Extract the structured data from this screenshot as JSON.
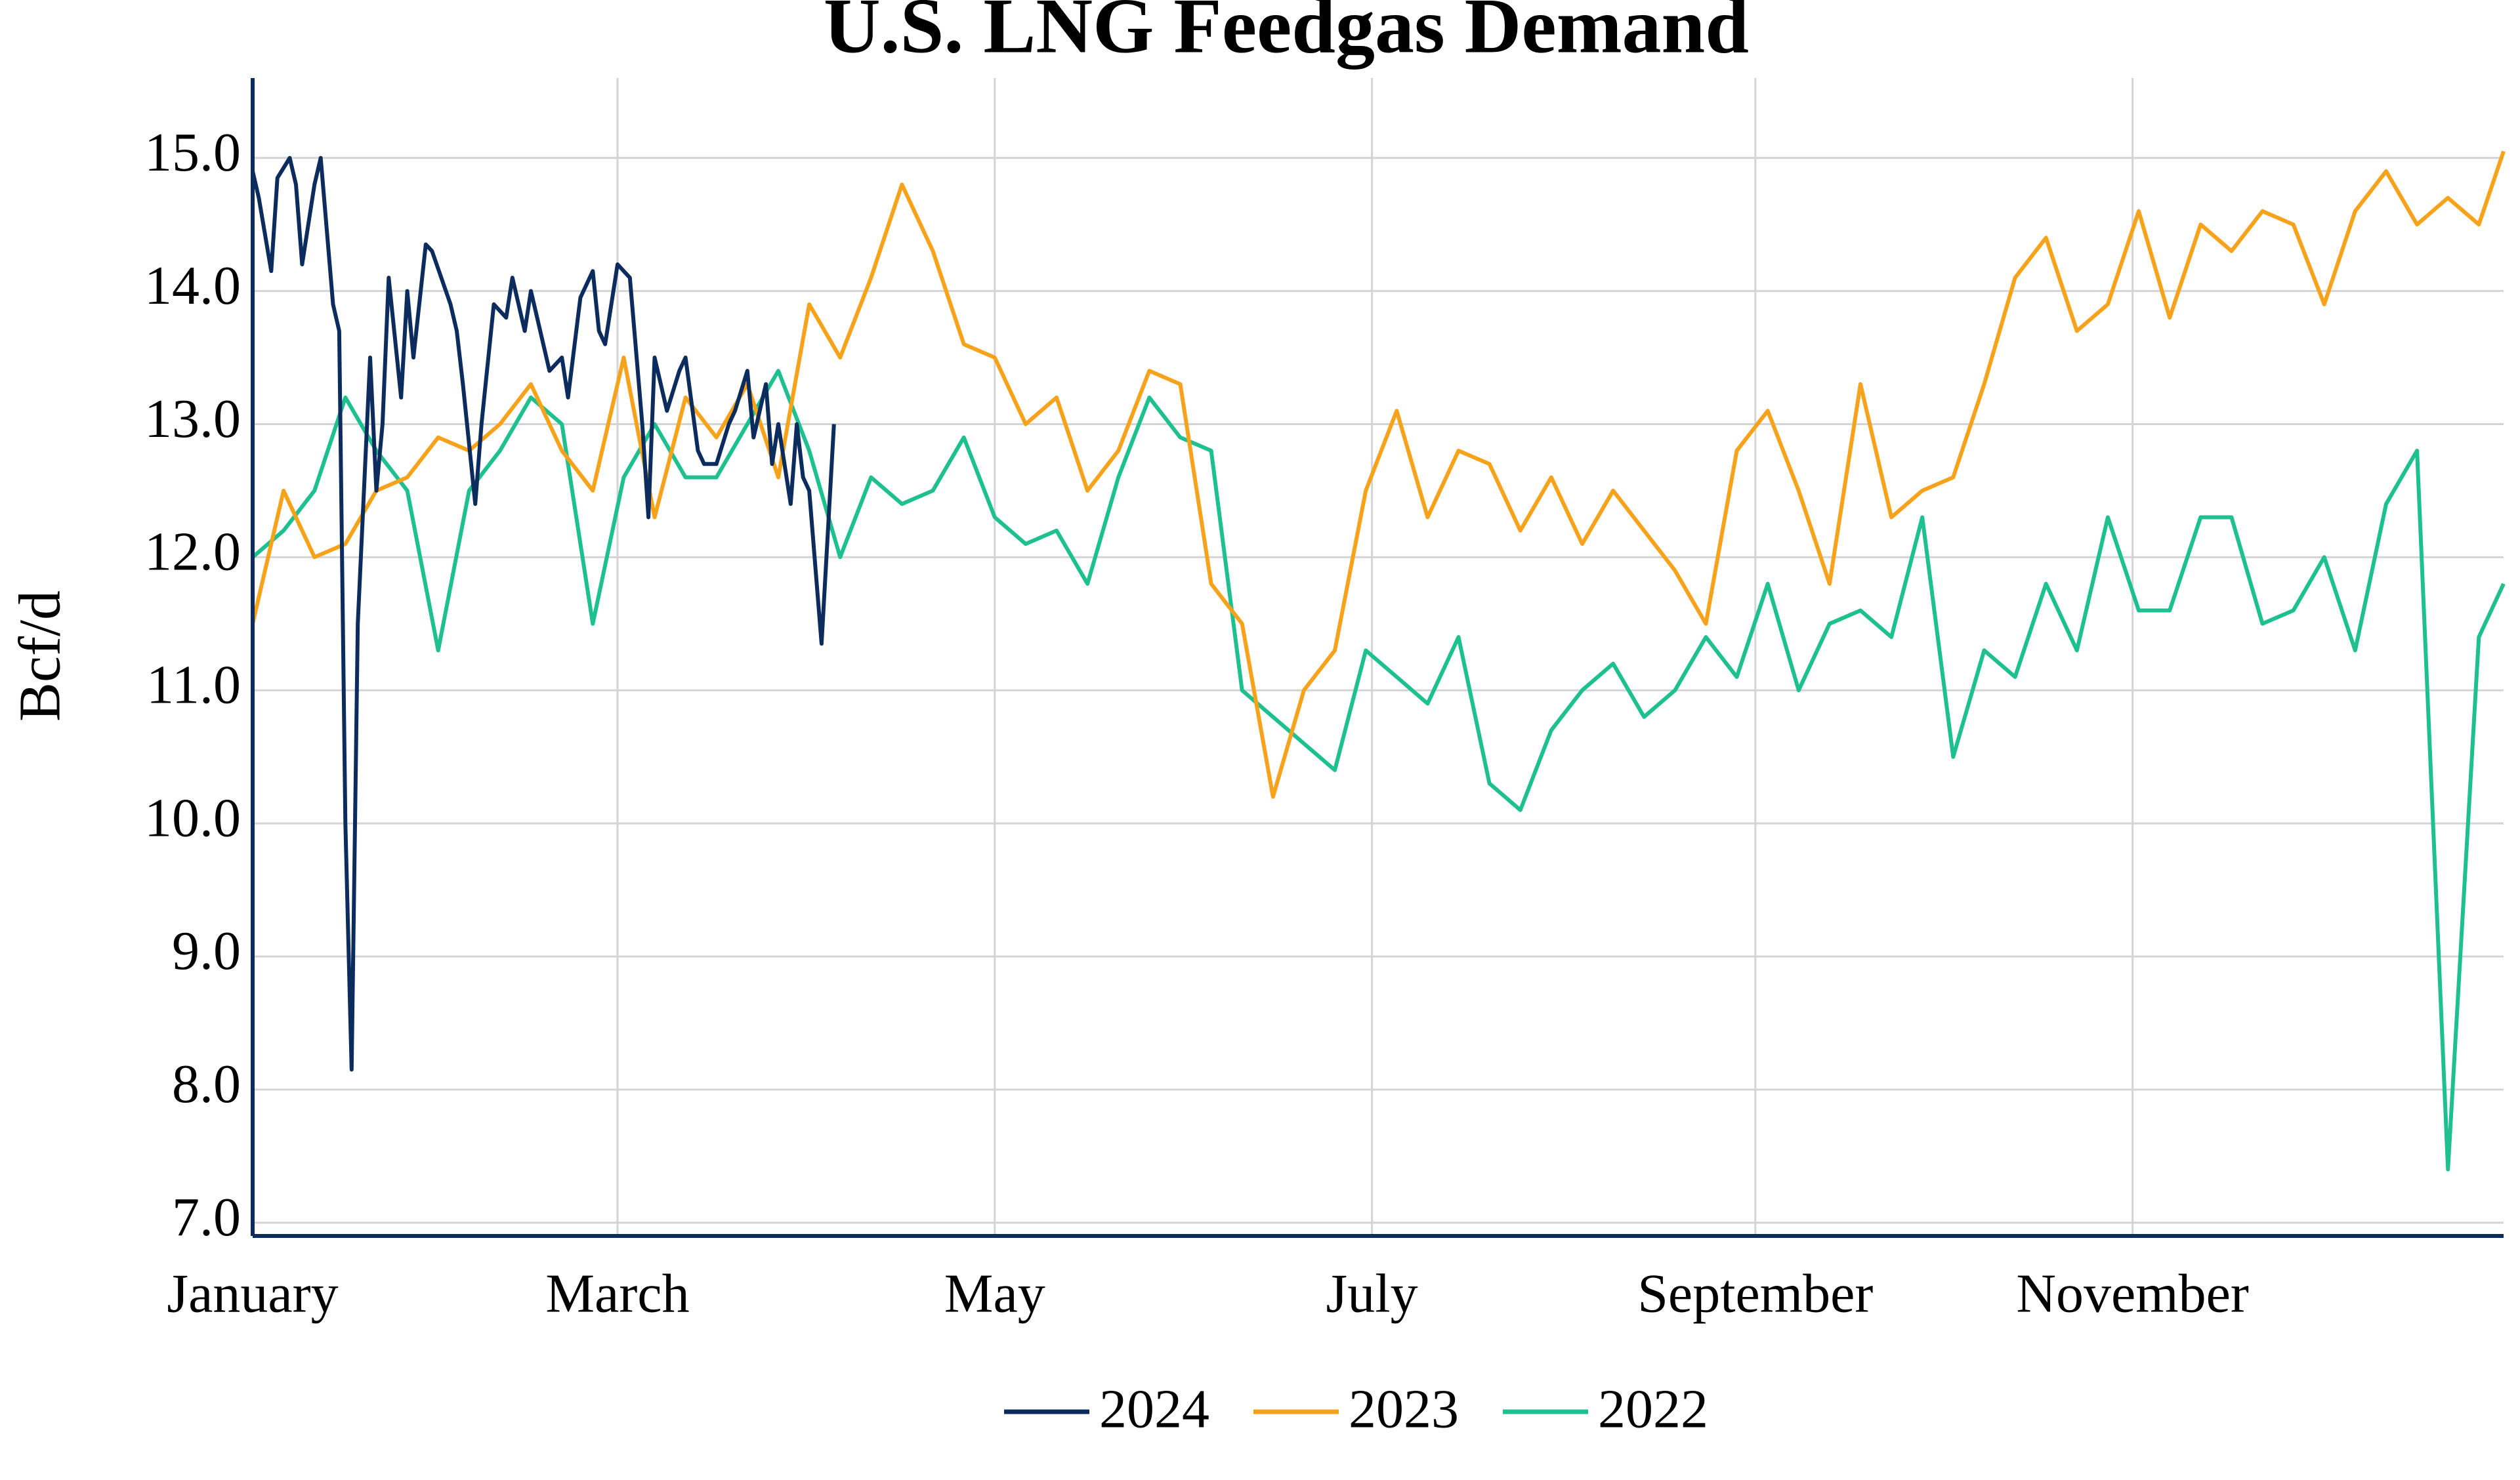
{
  "chart_data": {
    "type": "line",
    "title": "U.S. LNG Feedgas Demand",
    "ylabel": "Bcf/d",
    "xlim": [
      1,
      365
    ],
    "ylim": [
      6.9,
      15.6
    ],
    "xticks": [
      {
        "value": 1,
        "label": "January"
      },
      {
        "value": 60,
        "label": "March"
      },
      {
        "value": 121,
        "label": "May"
      },
      {
        "value": 182,
        "label": "July"
      },
      {
        "value": 244,
        "label": "September"
      },
      {
        "value": 305,
        "label": "November"
      }
    ],
    "yticks": [
      {
        "value": 7,
        "label": "7.0"
      },
      {
        "value": 8,
        "label": "8.0"
      },
      {
        "value": 9,
        "label": "9.0"
      },
      {
        "value": 10,
        "label": "10.0"
      },
      {
        "value": 11,
        "label": "11.0"
      },
      {
        "value": 12,
        "label": "12.0"
      },
      {
        "value": 13,
        "label": "13.0"
      },
      {
        "value": 14,
        "label": "14.0"
      },
      {
        "value": 15,
        "label": "15.0"
      }
    ],
    "grid": true,
    "legend": "bottom",
    "series": [
      {
        "name": "2024",
        "color": "#0d2c5e",
        "x": [
          1,
          2,
          4,
          5,
          7,
          8,
          9,
          11,
          12,
          14,
          15,
          16,
          17,
          18,
          20,
          21,
          22,
          23,
          25,
          26,
          27,
          29,
          30,
          33,
          34,
          35,
          37,
          38,
          40,
          42,
          43,
          45,
          46,
          47,
          49,
          51,
          52,
          54,
          56,
          57,
          58,
          60,
          62,
          64,
          65,
          66,
          68,
          70,
          71,
          73,
          74,
          76,
          78,
          79,
          81,
          82,
          84,
          85,
          86,
          88,
          89,
          90,
          91,
          93,
          95
        ],
        "values": [
          14.9,
          14.7,
          14.15,
          14.85,
          15.0,
          14.8,
          14.2,
          14.8,
          15.0,
          13.9,
          13.7,
          10,
          8.15,
          11.5,
          13.5,
          12.5,
          13.0,
          14.1,
          13.2,
          14.0,
          13.5,
          14.35,
          14.3,
          13.9,
          13.7,
          13.3,
          12.4,
          13.0,
          13.9,
          13.8,
          14.1,
          13.7,
          14.0,
          13.8,
          13.4,
          13.5,
          13.2,
          13.95,
          14.15,
          13.7,
          13.6,
          14.2,
          14.1,
          13.0,
          12.3,
          13.5,
          13.1,
          13.4,
          13.5,
          12.8,
          12.7,
          12.7,
          13.0,
          13.1,
          13.4,
          12.9,
          13.3,
          12.7,
          13.0,
          12.4,
          13.0,
          12.6,
          12.5,
          11.35,
          13.0
        ]
      },
      {
        "name": "2023",
        "color": "#f7a21b",
        "x": [
          1,
          6,
          11,
          16,
          21,
          26,
          31,
          36,
          41,
          46,
          51,
          56,
          61,
          66,
          71,
          76,
          81,
          86,
          91,
          96,
          101,
          106,
          111,
          116,
          121,
          126,
          131,
          136,
          141,
          146,
          151,
          156,
          161,
          166,
          171,
          176,
          181,
          186,
          191,
          196,
          201,
          206,
          211,
          216,
          221,
          226,
          231,
          236,
          241,
          246,
          251,
          256,
          261,
          266,
          271,
          276,
          281,
          286,
          291,
          296,
          301,
          306,
          311,
          316,
          321,
          326,
          331,
          336,
          341,
          346,
          351,
          356,
          361,
          365
        ],
        "values": [
          11.5,
          12.5,
          12.0,
          12.1,
          12.5,
          12.6,
          12.9,
          12.8,
          13.0,
          13.3,
          12.8,
          12.5,
          13.5,
          12.3,
          13.2,
          12.9,
          13.3,
          12.6,
          13.9,
          13.5,
          14.1,
          14.8,
          14.3,
          13.6,
          13.5,
          13.0,
          13.2,
          12.5,
          12.8,
          13.4,
          13.3,
          11.8,
          11.5,
          10.2,
          11.0,
          11.3,
          12.5,
          13.1,
          12.3,
          12.8,
          12.7,
          12.2,
          12.6,
          12.1,
          12.5,
          12.2,
          11.9,
          11.5,
          12.8,
          13.1,
          12.5,
          11.8,
          13.3,
          12.3,
          12.5,
          12.6,
          13.3,
          14.1,
          14.4,
          13.7,
          13.9,
          14.6,
          13.8,
          14.5,
          14.3,
          14.6,
          14.5,
          13.9,
          14.6,
          14.9,
          14.5,
          14.7,
          14.5,
          15.05
        ]
      },
      {
        "name": "2022",
        "color": "#1ec08f",
        "x": [
          1,
          6,
          11,
          16,
          21,
          26,
          31,
          36,
          41,
          46,
          51,
          56,
          61,
          66,
          71,
          76,
          81,
          86,
          91,
          96,
          101,
          106,
          111,
          116,
          121,
          126,
          131,
          136,
          141,
          146,
          151,
          156,
          161,
          166,
          171,
          176,
          181,
          186,
          191,
          196,
          201,
          206,
          211,
          216,
          221,
          226,
          231,
          236,
          241,
          246,
          251,
          256,
          261,
          266,
          271,
          276,
          281,
          286,
          291,
          296,
          301,
          306,
          311,
          316,
          321,
          326,
          331,
          336,
          341,
          346,
          351,
          356,
          361,
          365
        ],
        "values": [
          12.0,
          12.2,
          12.5,
          13.2,
          12.8,
          12.5,
          11.3,
          12.5,
          12.8,
          13.2,
          13.0,
          11.5,
          12.6,
          13.0,
          12.6,
          12.6,
          13.0,
          13.4,
          12.8,
          12.0,
          12.6,
          12.4,
          12.5,
          12.9,
          12.3,
          12.1,
          12.2,
          11.8,
          12.6,
          13.2,
          12.9,
          12.8,
          11.0,
          10.8,
          10.6,
          10.4,
          11.3,
          11.1,
          10.9,
          11.4,
          10.3,
          10.1,
          10.7,
          11.0,
          11.2,
          10.8,
          11.0,
          11.4,
          11.1,
          11.8,
          11.0,
          11.5,
          11.6,
          11.4,
          12.3,
          10.5,
          11.3,
          11.1,
          11.8,
          11.3,
          12.3,
          11.6,
          11.6,
          12.3,
          12.3,
          11.5,
          11.6,
          12.0,
          11.3,
          12.4,
          12.8,
          7.4,
          11.4,
          11.8
        ]
      }
    ]
  }
}
